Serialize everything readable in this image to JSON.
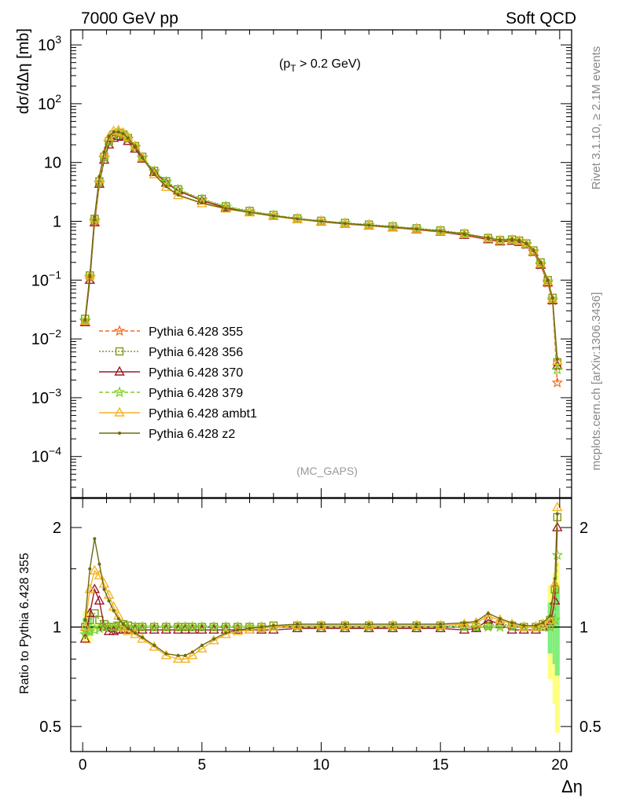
{
  "header": {
    "left": "7000 GeV pp",
    "right": "Soft QCD"
  },
  "side_labels": {
    "rivet": "Rivet 3.1.10, ≥ 2.1M events",
    "mcplots": "mcplots.cern.ch [arXiv:1306.3436]"
  },
  "cut_label_main": "(p",
  "cut_label_sub": "T",
  "cut_label_rest": " > 0.2 GeV)",
  "analysis_tag": "(MC_GAPS)",
  "colors": {
    "s355": "#ee6b1f",
    "s356": "#7a9a1a",
    "s370": "#9b1c2a",
    "s379": "#7fcc26",
    "ambt1": "#f5b324",
    "z2": "#6b6b10",
    "band_yellow": "#ffff80",
    "band_green": "#80ee80"
  },
  "chart_data": [
    {
      "type": "line",
      "panel": "main",
      "ylabel": "dσ/dΔη [mb]",
      "yscale": "log",
      "xlim": [
        -0.5,
        20.5
      ],
      "ylim": [
        2e-05,
        1800
      ],
      "y_ticks": [
        {
          "value": 1000,
          "base": "10",
          "exp": "3"
        },
        {
          "value": 100,
          "base": "10",
          "exp": "2"
        },
        {
          "value": 10,
          "base": "10",
          "exp": ""
        },
        {
          "value": 1,
          "base": "1",
          "exp": ""
        },
        {
          "value": 0.1,
          "base": "10",
          "exp": "−1"
        },
        {
          "value": 0.01,
          "base": "10",
          "exp": "−2"
        },
        {
          "value": 0.001,
          "base": "10",
          "exp": "−3"
        },
        {
          "value": 0.0001,
          "base": "10",
          "exp": "−4"
        }
      ],
      "x": [
        0.1,
        0.3,
        0.5,
        0.7,
        0.9,
        1.1,
        1.3,
        1.5,
        1.7,
        1.9,
        2.2,
        2.5,
        3.0,
        3.5,
        4.0,
        5.0,
        6.0,
        7.0,
        8.0,
        9.0,
        10.0,
        11.0,
        12.0,
        13.0,
        14.0,
        15.0,
        16.0,
        17.0,
        17.5,
        18.0,
        18.3,
        18.6,
        18.9,
        19.2,
        19.5,
        19.7,
        19.9
      ],
      "series": [
        {
          "name": "Pythia 6.428 355",
          "key": "s355",
          "values": [
            0.02,
            0.11,
            1.0,
            4.5,
            12,
            22,
            29,
            31,
            29,
            25,
            18,
            12,
            7.0,
            4.6,
            3.4,
            2.3,
            1.75,
            1.45,
            1.25,
            1.1,
            1.0,
            0.92,
            0.86,
            0.8,
            0.74,
            0.68,
            0.6,
            0.5,
            0.46,
            0.47,
            0.45,
            0.4,
            0.3,
            0.18,
            0.09,
            0.045,
            0.0018
          ]
        },
        {
          "name": "Pythia 6.428 356",
          "key": "s356",
          "values": [
            0.022,
            0.12,
            1.1,
            4.8,
            12.5,
            23,
            30,
            32,
            30,
            26,
            19,
            12.5,
            7.2,
            4.8,
            3.5,
            2.4,
            1.8,
            1.5,
            1.28,
            1.12,
            1.02,
            0.94,
            0.88,
            0.82,
            0.76,
            0.7,
            0.62,
            0.52,
            0.48,
            0.49,
            0.47,
            0.42,
            0.32,
            0.2,
            0.1,
            0.05,
            0.004
          ]
        },
        {
          "name": "Pythia 6.428 370",
          "key": "s370",
          "values": [
            0.019,
            0.1,
            0.95,
            4.3,
            11,
            20,
            26,
            28,
            27,
            23,
            17,
            11.5,
            6.8,
            4.5,
            3.3,
            2.25,
            1.7,
            1.42,
            1.22,
            1.08,
            0.98,
            0.9,
            0.84,
            0.78,
            0.72,
            0.66,
            0.58,
            0.49,
            0.45,
            0.46,
            0.44,
            0.4,
            0.3,
            0.18,
            0.09,
            0.045,
            0.0035
          ]
        },
        {
          "name": "Pythia 6.428 379",
          "key": "s379",
          "values": [
            0.021,
            0.115,
            1.05,
            4.6,
            12.2,
            22.5,
            29.5,
            31.5,
            29.5,
            25.5,
            18.5,
            12.2,
            7.1,
            4.7,
            3.45,
            2.35,
            1.78,
            1.48,
            1.27,
            1.11,
            1.01,
            0.93,
            0.87,
            0.81,
            0.75,
            0.69,
            0.61,
            0.51,
            0.47,
            0.48,
            0.46,
            0.41,
            0.31,
            0.19,
            0.095,
            0.048,
            0.003
          ]
        },
        {
          "name": "Pythia 6.428 ambt1",
          "key": "ambt1",
          "values": [
            0.02,
            0.12,
            1.1,
            5.2,
            14,
            27,
            34,
            35,
            32,
            27,
            19,
            12,
            6.2,
            3.8,
            2.75,
            2.0,
            1.62,
            1.4,
            1.22,
            1.08,
            0.99,
            0.91,
            0.85,
            0.79,
            0.73,
            0.67,
            0.6,
            0.51,
            0.47,
            0.48,
            0.46,
            0.41,
            0.31,
            0.19,
            0.095,
            0.047,
            0.0042
          ]
        },
        {
          "name": "Pythia 6.428 z2",
          "key": "z2",
          "values": [
            0.021,
            0.12,
            1.2,
            5.8,
            15,
            28,
            33,
            33,
            31,
            26,
            18.5,
            12,
            6.3,
            3.9,
            2.8,
            2.05,
            1.65,
            1.42,
            1.24,
            1.1,
            1.0,
            0.92,
            0.86,
            0.8,
            0.74,
            0.68,
            0.61,
            0.52,
            0.48,
            0.49,
            0.47,
            0.42,
            0.32,
            0.2,
            0.1,
            0.05,
            0.0045
          ]
        }
      ]
    },
    {
      "type": "line",
      "panel": "ratio",
      "xlabel": "Δη",
      "ylabel": "Ratio to Pythia 6.428 355",
      "yscale": "log",
      "xlim": [
        -0.5,
        20.5
      ],
      "ylim": [
        0.42,
        2.45
      ],
      "x_ticks": [
        0,
        5,
        10,
        15,
        20
      ],
      "y_ticks": [
        0.5,
        1,
        2
      ],
      "reference": 1,
      "x": [
        0.1,
        0.3,
        0.5,
        0.7,
        0.9,
        1.1,
        1.3,
        1.5,
        1.7,
        1.9,
        2.2,
        2.5,
        3.0,
        3.5,
        4.0,
        4.3,
        4.6,
        5.0,
        5.5,
        6.0,
        6.5,
        7.0,
        7.5,
        8.0,
        9.0,
        10.0,
        11.0,
        12.0,
        13.0,
        14.0,
        15.0,
        16.0,
        16.5,
        17.0,
        17.5,
        18.0,
        18.5,
        19.0,
        19.3,
        19.6,
        19.8,
        19.9
      ],
      "series": [
        {
          "name": "Pythia 6.428 356",
          "key": "s356",
          "values": [
            1.0,
            1.05,
            1.1,
            1.05,
            1.02,
            1.0,
            1.0,
            1.01,
            1.02,
            1.01,
            1.0,
            1.0,
            1.0,
            1.0,
            1.0,
            1.0,
            1.0,
            1.0,
            1.0,
            1.0,
            1.0,
            1.0,
            1.0,
            1.01,
            1.01,
            1.01,
            1.01,
            1.01,
            1.01,
            1.01,
            1.01,
            1.01,
            1.0,
            1.01,
            1.02,
            1.01,
            1.0,
            1.0,
            1.02,
            1.05,
            1.3,
            2.15
          ]
        },
        {
          "name": "Pythia 6.428 370",
          "key": "s370",
          "values": [
            0.92,
            1.1,
            1.3,
            1.2,
            1.0,
            0.97,
            0.97,
            0.98,
            0.98,
            0.98,
            0.98,
            0.98,
            0.98,
            0.98,
            0.98,
            0.98,
            0.98,
            0.98,
            0.98,
            0.98,
            0.98,
            0.98,
            0.98,
            0.98,
            0.99,
            0.99,
            0.99,
            0.99,
            0.99,
            0.99,
            0.99,
            0.98,
            0.99,
            1.05,
            1.02,
            0.98,
            0.98,
            0.98,
            1.0,
            1.02,
            1.2,
            2.0
          ]
        },
        {
          "name": "Pythia 6.428 379",
          "key": "s379",
          "values": [
            0.95,
            0.97,
            0.98,
            0.99,
            1.0,
            1.0,
            1.0,
            1.0,
            1.0,
            1.0,
            1.0,
            1.0,
            1.0,
            1.0,
            1.0,
            1.0,
            1.0,
            1.0,
            1.0,
            1.0,
            1.0,
            1.0,
            1.0,
            1.0,
            1.0,
            1.0,
            1.0,
            1.0,
            1.0,
            1.0,
            1.0,
            1.0,
            1.0,
            1.0,
            1.0,
            1.0,
            1.0,
            1.0,
            1.0,
            1.0,
            1.05,
            1.65
          ]
        },
        {
          "name": "Pythia 6.428 ambt1",
          "key": "ambt1",
          "values": [
            1.0,
            1.3,
            1.48,
            1.43,
            1.35,
            1.25,
            1.15,
            1.08,
            1.0,
            0.97,
            0.95,
            0.92,
            0.87,
            0.82,
            0.8,
            0.8,
            0.82,
            0.86,
            0.91,
            0.95,
            0.97,
            0.98,
            0.99,
            1.0,
            1.01,
            1.01,
            1.01,
            1.01,
            1.01,
            1.01,
            1.01,
            1.02,
            1.03,
            1.08,
            1.05,
            1.02,
            1.0,
            1.0,
            1.02,
            1.05,
            1.35,
            2.3
          ]
        },
        {
          "name": "Pythia 6.428 z2",
          "key": "z2",
          "values": [
            1.05,
            1.5,
            1.85,
            1.55,
            1.3,
            1.2,
            1.12,
            1.06,
            1.02,
            0.99,
            0.96,
            0.93,
            0.88,
            0.83,
            0.82,
            0.82,
            0.84,
            0.88,
            0.92,
            0.96,
            0.98,
            0.99,
            1.0,
            1.01,
            1.02,
            1.02,
            1.02,
            1.02,
            1.02,
            1.02,
            1.02,
            1.03,
            1.04,
            1.1,
            1.06,
            1.03,
            1.01,
            1.01,
            1.03,
            1.08,
            1.4,
            2.2
          ]
        }
      ]
    }
  ]
}
